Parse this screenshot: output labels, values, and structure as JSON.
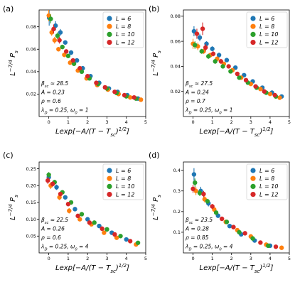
{
  "chart_data": [
    {
      "type": "scatter",
      "panel_label": "(a)",
      "xlabel": "Lexp[−A/(T − Tsc)^(1/2)]",
      "ylabel": "L^(−7/4) Ps",
      "xlim": [
        -0.5,
        5
      ],
      "ylim": [
        0,
        0.095
      ],
      "xticks": [
        0,
        1,
        2,
        3,
        4,
        5
      ],
      "yticks": [
        0.02,
        0.04,
        0.06,
        0.08
      ],
      "ytick_labels": [
        "0.02",
        "0.04",
        "0.06",
        "0.08"
      ],
      "legend_position": "top-right",
      "annotations": [
        "β_sc ≈ 28.5",
        "A = 0.23",
        "ρ = 0.6",
        "λ_D = 0.25, ω_0 = 1"
      ],
      "series": [
        {
          "name": "L = 6",
          "color": "#1f77b4",
          "x": [
            0.02,
            0.35,
            0.6,
            0.85,
            1.15,
            1.45,
            1.75,
            2.15,
            2.6,
            3.1,
            3.55,
            4.05,
            4.6
          ],
          "y": [
            0.088,
            0.081,
            0.075,
            0.066,
            0.057,
            0.05,
            0.043,
            0.036,
            0.03,
            0.025,
            0.022,
            0.019,
            0.016
          ],
          "yerr": [
            0.007,
            0.004,
            0.003,
            0.002,
            0.002,
            0.001,
            0.001,
            0.001,
            0.001,
            0.001,
            0.001,
            0.001,
            0.001
          ]
        },
        {
          "name": "L = 8",
          "color": "#ff7f0e",
          "x": [
            0.0,
            0.15,
            0.3,
            0.5,
            0.8,
            1.1,
            1.5,
            1.95,
            2.5,
            3.05,
            3.6,
            4.2,
            4.75
          ],
          "y": [
            0.09,
            0.075,
            0.068,
            0.06,
            0.055,
            0.048,
            0.041,
            0.034,
            0.028,
            0.024,
            0.02,
            0.017,
            0.015
          ],
          "yerr": [
            0.005,
            0.003,
            0.003,
            0.002,
            0.002,
            0.001,
            0.001,
            0.001,
            0.001,
            0.001,
            0.001,
            0.001,
            0.001
          ]
        },
        {
          "name": "L = 10",
          "color": "#2ca02c",
          "x": [
            0.1,
            0.45,
            0.7,
            1.0,
            1.3,
            1.7,
            2.1,
            2.55,
            3.0,
            3.5,
            4.0,
            4.5
          ],
          "y": [
            0.087,
            0.072,
            0.062,
            0.054,
            0.047,
            0.04,
            0.034,
            0.029,
            0.025,
            0.021,
            0.018,
            0.016
          ],
          "yerr": [
            0.004,
            0.003,
            0.002,
            0.002,
            0.001,
            0.001,
            0.001,
            0.001,
            0.001,
            0.001,
            0.001,
            0.001
          ]
        },
        {
          "name": "L = 12",
          "color": "#d62728",
          "x": [
            0.25,
            0.55,
            0.9,
            1.25,
            1.6,
            2.0,
            2.45,
            2.9,
            3.4,
            3.9,
            4.4
          ],
          "y": [
            0.078,
            0.068,
            0.058,
            0.05,
            0.043,
            0.036,
            0.03,
            0.026,
            0.022,
            0.019,
            0.017
          ],
          "yerr": [
            0.004,
            0.003,
            0.002,
            0.002,
            0.001,
            0.001,
            0.001,
            0.001,
            0.001,
            0.001,
            0.001
          ]
        }
      ]
    },
    {
      "type": "scatter",
      "panel_label": "(b)",
      "xlabel": "Lexp[−A/(T − Tsc)^(1/2)]",
      "ylabel": "L^(−7/4) Ps",
      "xlim": [
        -0.5,
        5
      ],
      "ylim": [
        0,
        0.085
      ],
      "xticks": [
        0,
        1,
        2,
        3,
        4,
        5
      ],
      "yticks": [
        0.02,
        0.04,
        0.06,
        0.08
      ],
      "ytick_labels": [
        "0.02",
        "0.04",
        "0.06",
        "0.08"
      ],
      "legend_position": "top-right",
      "annotations": [
        "β_sc ≈ 27.5",
        "A = 0.24",
        "ρ = 0.7",
        "λ_D = 0.25, ω_0 = 1"
      ],
      "series": [
        {
          "name": "L = 6",
          "color": "#1f77b4",
          "x": [
            0.05,
            0.35,
            0.7,
            1.0,
            1.35,
            1.75,
            2.2,
            2.65,
            3.1,
            3.6,
            4.1,
            4.6
          ],
          "y": [
            0.068,
            0.063,
            0.058,
            0.054,
            0.049,
            0.045,
            0.039,
            0.033,
            0.028,
            0.023,
            0.019,
            0.016
          ],
          "yerr": [
            0.004,
            0.003,
            0.002,
            0.002,
            0.002,
            0.001,
            0.001,
            0.001,
            0.001,
            0.001,
            0.001,
            0.001
          ]
        },
        {
          "name": "L = 8",
          "color": "#ff7f0e",
          "x": [
            0.0,
            0.25,
            0.55,
            0.9,
            1.25,
            1.6,
            2.05,
            2.5,
            3.0,
            3.5,
            4.0,
            4.5
          ],
          "y": [
            0.058,
            0.056,
            0.052,
            0.049,
            0.046,
            0.042,
            0.037,
            0.031,
            0.026,
            0.022,
            0.018,
            0.015
          ],
          "yerr": [
            0.004,
            0.003,
            0.002,
            0.002,
            0.002,
            0.001,
            0.001,
            0.001,
            0.001,
            0.001,
            0.001,
            0.001
          ]
        },
        {
          "name": "L = 10",
          "color": "#2ca02c",
          "x": [
            0.1,
            0.45,
            0.8,
            1.15,
            1.55,
            1.95,
            2.4,
            2.85,
            3.3,
            3.8,
            4.3
          ],
          "y": [
            0.057,
            0.052,
            0.048,
            0.044,
            0.04,
            0.036,
            0.031,
            0.027,
            0.023,
            0.019,
            0.016
          ],
          "yerr": [
            0.003,
            0.002,
            0.002,
            0.002,
            0.001,
            0.001,
            0.001,
            0.001,
            0.001,
            0.001,
            0.001
          ]
        },
        {
          "name": "L = 12",
          "color": "#d62728",
          "x": [
            0.5,
            0.2,
            0.65,
            1.05,
            1.45,
            1.85,
            2.3,
            2.75,
            3.25,
            3.7,
            4.25
          ],
          "y": [
            0.07,
            0.066,
            0.055,
            0.05,
            0.044,
            0.04,
            0.034,
            0.029,
            0.024,
            0.02,
            0.017
          ],
          "yerr": [
            0.005,
            0.004,
            0.003,
            0.002,
            0.002,
            0.001,
            0.001,
            0.001,
            0.001,
            0.001,
            0.001
          ]
        }
      ]
    },
    {
      "type": "scatter",
      "panel_label": "(c)",
      "xlabel": "Lexp[−A/(T − Tsc)^(1/2)]",
      "ylabel": "L^(−7/4) Ps",
      "xlim": [
        -0.5,
        5
      ],
      "ylim": [
        0,
        0.27
      ],
      "xticks": [
        0,
        1,
        2,
        3,
        4,
        5
      ],
      "yticks": [
        0.05,
        0.1,
        0.15,
        0.2,
        0.25
      ],
      "ytick_labels": [
        "0.05",
        "0.10",
        "0.15",
        "0.20",
        "0.25"
      ],
      "legend_position": "top-right",
      "annotations": [
        "β_sc ≈ 22.5",
        "A = 0.26",
        "ρ = 0.6",
        "λ_D = 0.25, ω_0 = 4"
      ],
      "series": [
        {
          "name": "L = 6",
          "color": "#1f77b4",
          "x": [
            0.0,
            0.4,
            0.85,
            1.35,
            2.0,
            2.6,
            3.25,
            4.0
          ],
          "y": [
            0.225,
            0.195,
            0.165,
            0.13,
            0.1,
            0.08,
            0.06,
            0.04
          ],
          "yerr": [
            0.01,
            0.008,
            0.006,
            0.005,
            0.004,
            0.003,
            0.003,
            0.002
          ]
        },
        {
          "name": "L = 8",
          "color": "#ff7f0e",
          "x": [
            0.1,
            0.55,
            1.05,
            1.6,
            2.2,
            2.85,
            3.5,
            4.5
          ],
          "y": [
            0.2,
            0.165,
            0.125,
            0.1,
            0.085,
            0.06,
            0.045,
            0.025
          ],
          "yerr": [
            0.01,
            0.008,
            0.008,
            0.005,
            0.004,
            0.003,
            0.003,
            0.002
          ]
        },
        {
          "name": "L = 10",
          "color": "#2ca02c",
          "x": [
            0.0,
            0.3,
            0.7,
            1.15,
            1.7,
            2.35,
            3.0,
            3.7,
            4.6
          ],
          "y": [
            0.232,
            0.21,
            0.18,
            0.15,
            0.115,
            0.09,
            0.07,
            0.05,
            0.03
          ],
          "yerr": [
            0.008,
            0.007,
            0.006,
            0.005,
            0.004,
            0.003,
            0.003,
            0.002,
            0.002
          ]
        },
        {
          "name": "L = 12",
          "color": "#d62728",
          "x": [
            -0.05,
            0.2,
            0.6,
            1.0,
            1.5,
            2.1,
            2.75,
            3.4,
            4.2
          ],
          "y": [
            0.215,
            0.205,
            0.175,
            0.145,
            0.11,
            0.09,
            0.072,
            0.055,
            0.035
          ],
          "yerr": [
            0.01,
            0.008,
            0.006,
            0.005,
            0.004,
            0.003,
            0.003,
            0.002,
            0.002
          ]
        }
      ]
    },
    {
      "type": "scatter",
      "panel_label": "(d)",
      "xlabel": "Lexp[−A/(T − Tsc)^(1/2)]",
      "ylabel": "L^(−7/4) Ps",
      "xlim": [
        -0.5,
        5
      ],
      "ylim": [
        0,
        0.44
      ],
      "xticks": [
        0,
        1,
        2,
        3,
        4,
        5
      ],
      "yticks": [
        0.1,
        0.2,
        0.3,
        0.4
      ],
      "ytick_labels": [
        "0.1",
        "0.2",
        "0.3",
        "0.4"
      ],
      "legend_position": "top-right",
      "annotations": [
        "β_sc ≈ 23.5",
        "A = 0.28",
        "ρ = 0.85",
        "λ_D = 0.25, ω_0 = 4"
      ],
      "series": [
        {
          "name": "L = 6",
          "color": "#1f77b4",
          "x": [
            0.05,
            0.4,
            0.8,
            1.3,
            1.9,
            2.5,
            3.2,
            4.0
          ],
          "y": [
            0.38,
            0.3,
            0.24,
            0.18,
            0.13,
            0.09,
            0.06,
            0.035
          ],
          "yerr": [
            0.03,
            0.02,
            0.015,
            0.01,
            0.008,
            0.005,
            0.004,
            0.003
          ]
        },
        {
          "name": "L = 8",
          "color": "#ff7f0e",
          "x": [
            0.15,
            0.6,
            1.1,
            1.7,
            2.3,
            3.0,
            3.8,
            4.6
          ],
          "y": [
            0.3,
            0.26,
            0.21,
            0.15,
            0.11,
            0.08,
            0.04,
            0.025
          ],
          "yerr": [
            0.02,
            0.015,
            0.012,
            0.01,
            0.008,
            0.005,
            0.003,
            0.002
          ]
        },
        {
          "name": "L = 10",
          "color": "#2ca02c",
          "x": [
            0.1,
            0.35,
            0.75,
            1.2,
            1.75,
            2.4,
            3.1,
            3.9
          ],
          "y": [
            0.34,
            0.29,
            0.25,
            0.195,
            0.15,
            0.1,
            0.07,
            0.035
          ],
          "yerr": [
            0.02,
            0.015,
            0.012,
            0.01,
            0.008,
            0.005,
            0.004,
            0.003
          ]
        },
        {
          "name": "L = 12",
          "color": "#d62728",
          "x": [
            0.0,
            0.55,
            1.0,
            1.5,
            2.1,
            2.7,
            3.5,
            4.3
          ],
          "y": [
            0.31,
            0.285,
            0.225,
            0.165,
            0.125,
            0.095,
            0.05,
            0.03
          ],
          "yerr": [
            0.02,
            0.015,
            0.012,
            0.01,
            0.008,
            0.005,
            0.004,
            0.003
          ]
        }
      ]
    }
  ]
}
